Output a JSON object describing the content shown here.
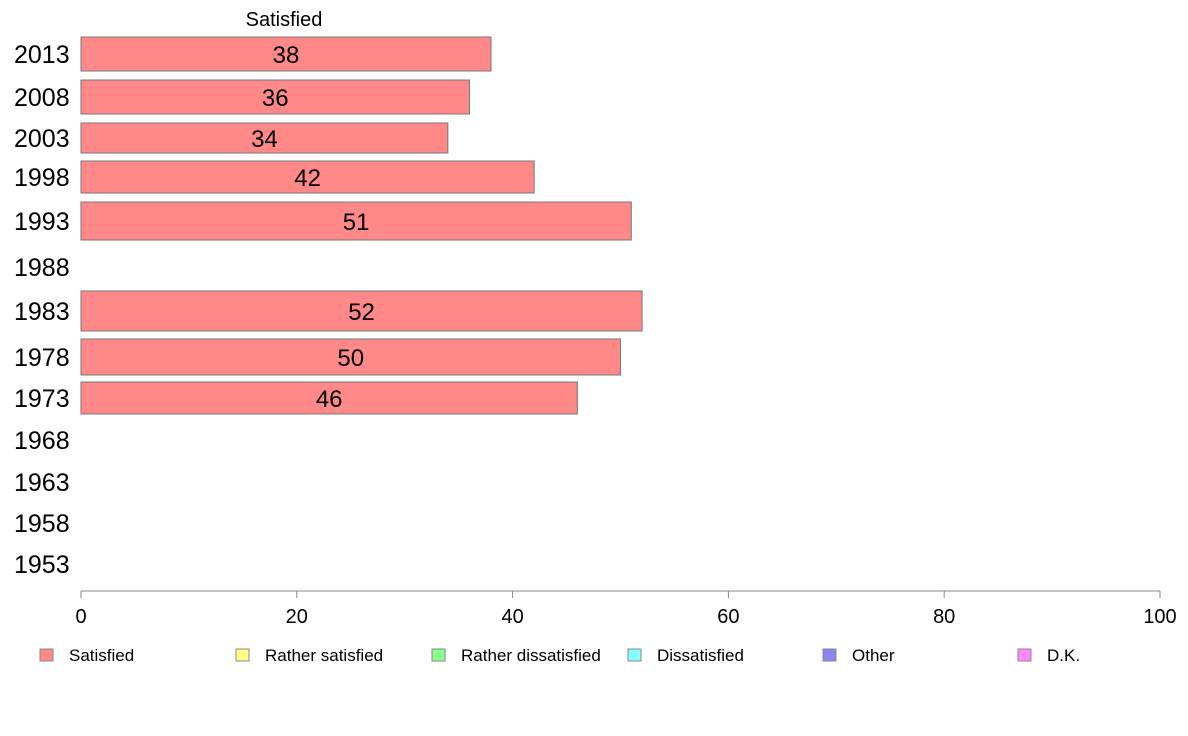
{
  "chart_data": {
    "type": "bar",
    "orientation": "horizontal",
    "stacked": true,
    "series_title": "Satisfied",
    "categories": [
      "2013",
      "2008",
      "2003",
      "1998",
      "1993",
      "1988",
      "1983",
      "1978",
      "1973",
      "1968",
      "1963",
      "1958",
      "1953"
    ],
    "series": [
      {
        "name": "Satisfied",
        "color": "#ff8888",
        "values": [
          38,
          36,
          34,
          42,
          51,
          null,
          52,
          50,
          46,
          null,
          null,
          null,
          null
        ]
      }
    ],
    "xlim": [
      0,
      100
    ],
    "x_ticks": [
      "0",
      "20",
      "40",
      "60",
      "80",
      "100"
    ],
    "grid": false,
    "legend_position": "bottom",
    "legend": [
      {
        "label": "Satisfied",
        "color": "#ff8888"
      },
      {
        "label": "Rather satisfied",
        "color": "#ffff88"
      },
      {
        "label": "Rather dissatisfied",
        "color": "#88ff88"
      },
      {
        "label": "Dissatisfied",
        "color": "#88ffff"
      },
      {
        "label": "Other",
        "color": "#8888ee"
      },
      {
        "label": "D.K.",
        "color": "#ff88ff"
      }
    ]
  }
}
